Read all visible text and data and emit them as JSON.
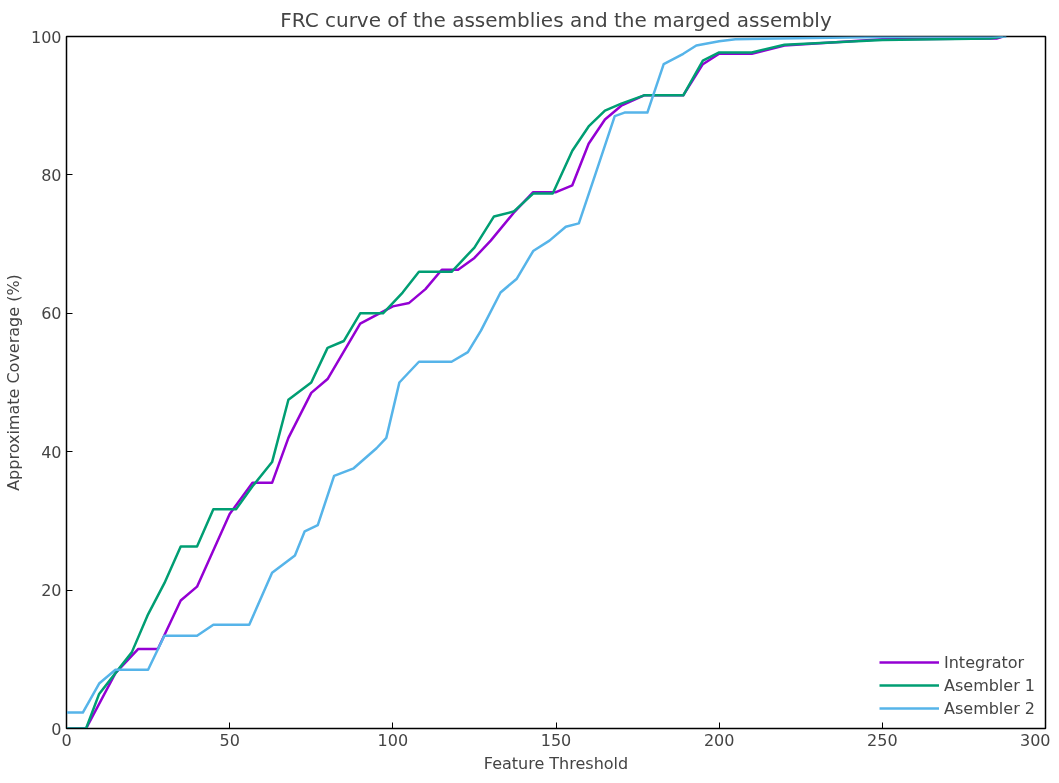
{
  "chart_data": {
    "type": "line",
    "title": "FRC curve of the assemblies and the marged assembly",
    "xlabel": "Feature Threshold",
    "ylabel": "Approximate Coverage (%)",
    "xlim": [
      0,
      300
    ],
    "ylim": [
      0,
      100
    ],
    "xticks": [
      0,
      50,
      100,
      150,
      200,
      250,
      300
    ],
    "yticks": [
      0,
      20,
      40,
      60,
      80,
      100
    ],
    "grid": false,
    "legend": "bottom right",
    "marker": "none",
    "line_style": "solid",
    "series": [
      {
        "name": "Integrator",
        "color": "#9400d3",
        "x": [
          0,
          6,
          15,
          22,
          28,
          35,
          40,
          50,
          57,
          63,
          68,
          75,
          80,
          90,
          100,
          105,
          110,
          115,
          120,
          125,
          130,
          137,
          143,
          150,
          155,
          160,
          165,
          170,
          177,
          189,
          195,
          200,
          210,
          220,
          250,
          285,
          287
        ],
        "values": [
          0,
          0,
          8,
          11.5,
          11.5,
          18.5,
          20.5,
          31,
          35.5,
          35.5,
          42,
          48.5,
          50.5,
          58.5,
          61,
          61.5,
          63.5,
          66.3,
          66.3,
          68,
          70.5,
          74.5,
          77.5,
          77.5,
          78.5,
          84.5,
          88,
          90,
          91.5,
          91.5,
          96,
          97.5,
          97.5,
          98.7,
          99.6,
          99.7,
          100
        ]
      },
      {
        "name": "Asembler 1",
        "color": "#009e73",
        "x": [
          0,
          6,
          10,
          15,
          20,
          25,
          30,
          35,
          40,
          45,
          52,
          57,
          63,
          68,
          75,
          80,
          85,
          90,
          97,
          103,
          108,
          118,
          125,
          131,
          137,
          143,
          149,
          155,
          160,
          165,
          170,
          177,
          189,
          195,
          200,
          210,
          220,
          250,
          283,
          287
        ],
        "values": [
          0,
          0,
          5,
          8,
          11,
          16.5,
          21,
          26.3,
          26.3,
          31.7,
          31.7,
          35,
          38.5,
          47.5,
          50,
          55,
          56,
          60,
          60,
          63,
          66,
          66,
          69.5,
          74,
          74.7,
          77.3,
          77.3,
          83.5,
          87,
          89.3,
          90.3,
          91.5,
          91.5,
          96.5,
          97.7,
          97.7,
          98.8,
          99.5,
          99.7,
          100
        ]
      },
      {
        "name": "Asembler 2",
        "color": "#56b4e9",
        "x": [
          0,
          5,
          10,
          15,
          25,
          30,
          40,
          45,
          56,
          63,
          70,
          73,
          77,
          82,
          88,
          95,
          98,
          102,
          108,
          118,
          123,
          127,
          133,
          138,
          143,
          148,
          153,
          157,
          162,
          168,
          171,
          178,
          183,
          189,
          193,
          200,
          205,
          260,
          288
        ],
        "values": [
          2.3,
          2.3,
          6.5,
          8.5,
          8.5,
          13.4,
          13.4,
          15,
          15,
          22.5,
          25,
          28.5,
          29.4,
          36.5,
          37.6,
          40.5,
          42,
          50,
          53,
          53,
          54.4,
          57.5,
          63,
          65,
          69,
          70.5,
          72.5,
          73,
          80,
          88.5,
          89,
          89,
          96,
          97.5,
          98.7,
          99.3,
          99.6,
          100,
          100
        ]
      }
    ]
  }
}
